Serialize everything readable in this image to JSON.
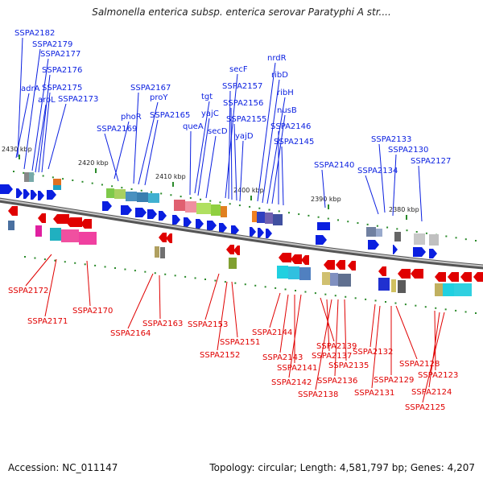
{
  "title": "Salmonella enterica subsp. enterica serovar Paratyphi A str....",
  "footer": {
    "accession": "Accession: NC_011147",
    "topology": "Topology: circular; Length: 4,581,797 bp; Genes: 4,207"
  },
  "colors": {
    "forward_strand": "#0a1fe0",
    "reverse_strand": "#e00000",
    "backbone": "#888888",
    "tick": "#2a8a2a"
  },
  "kbp_ticks": [
    "2430 kbp",
    "2420 kbp",
    "2410 kbp",
    "2400 kbp",
    "2390 kbp",
    "2380 kbp"
  ],
  "forward_labels": [
    "SSPA2182",
    "SSPA2179",
    "SSPA2177",
    "SSPA2176",
    "adrA",
    "aroL",
    "SSPA2175",
    "SSPA2173",
    "phoR",
    "SSPA2169",
    "SSPA2167",
    "proY",
    "SSPA2165",
    "tgt",
    "queA",
    "yajC",
    "secD",
    "secF",
    "SSPA2157",
    "SSPA2156",
    "SSPA2155",
    "yajD",
    "nrdR",
    "ribD",
    "ribH",
    "nusB",
    "SSPA2146",
    "SSPA2145",
    "SSPA2140",
    "SSPA2133",
    "SSPA2134",
    "SSPA2130",
    "SSPA2127"
  ],
  "reverse_labels": [
    "SSPA2172",
    "SSPA2171",
    "SSPA2170",
    "SSPA2164",
    "SSPA2163",
    "SSPA2153",
    "SSPA2151",
    "SSPA2152",
    "SSPA2144",
    "SSPA2143",
    "SSPA2141",
    "SSPA2142",
    "SSPA2139",
    "SSPA2137",
    "SSPA2138",
    "SSPA2136",
    "SSPA2135",
    "SSPA2132",
    "SSPA2131",
    "SSPA2129",
    "SSPA2128",
    "SSPA2123",
    "SSPA2124",
    "SSPA2125"
  ]
}
